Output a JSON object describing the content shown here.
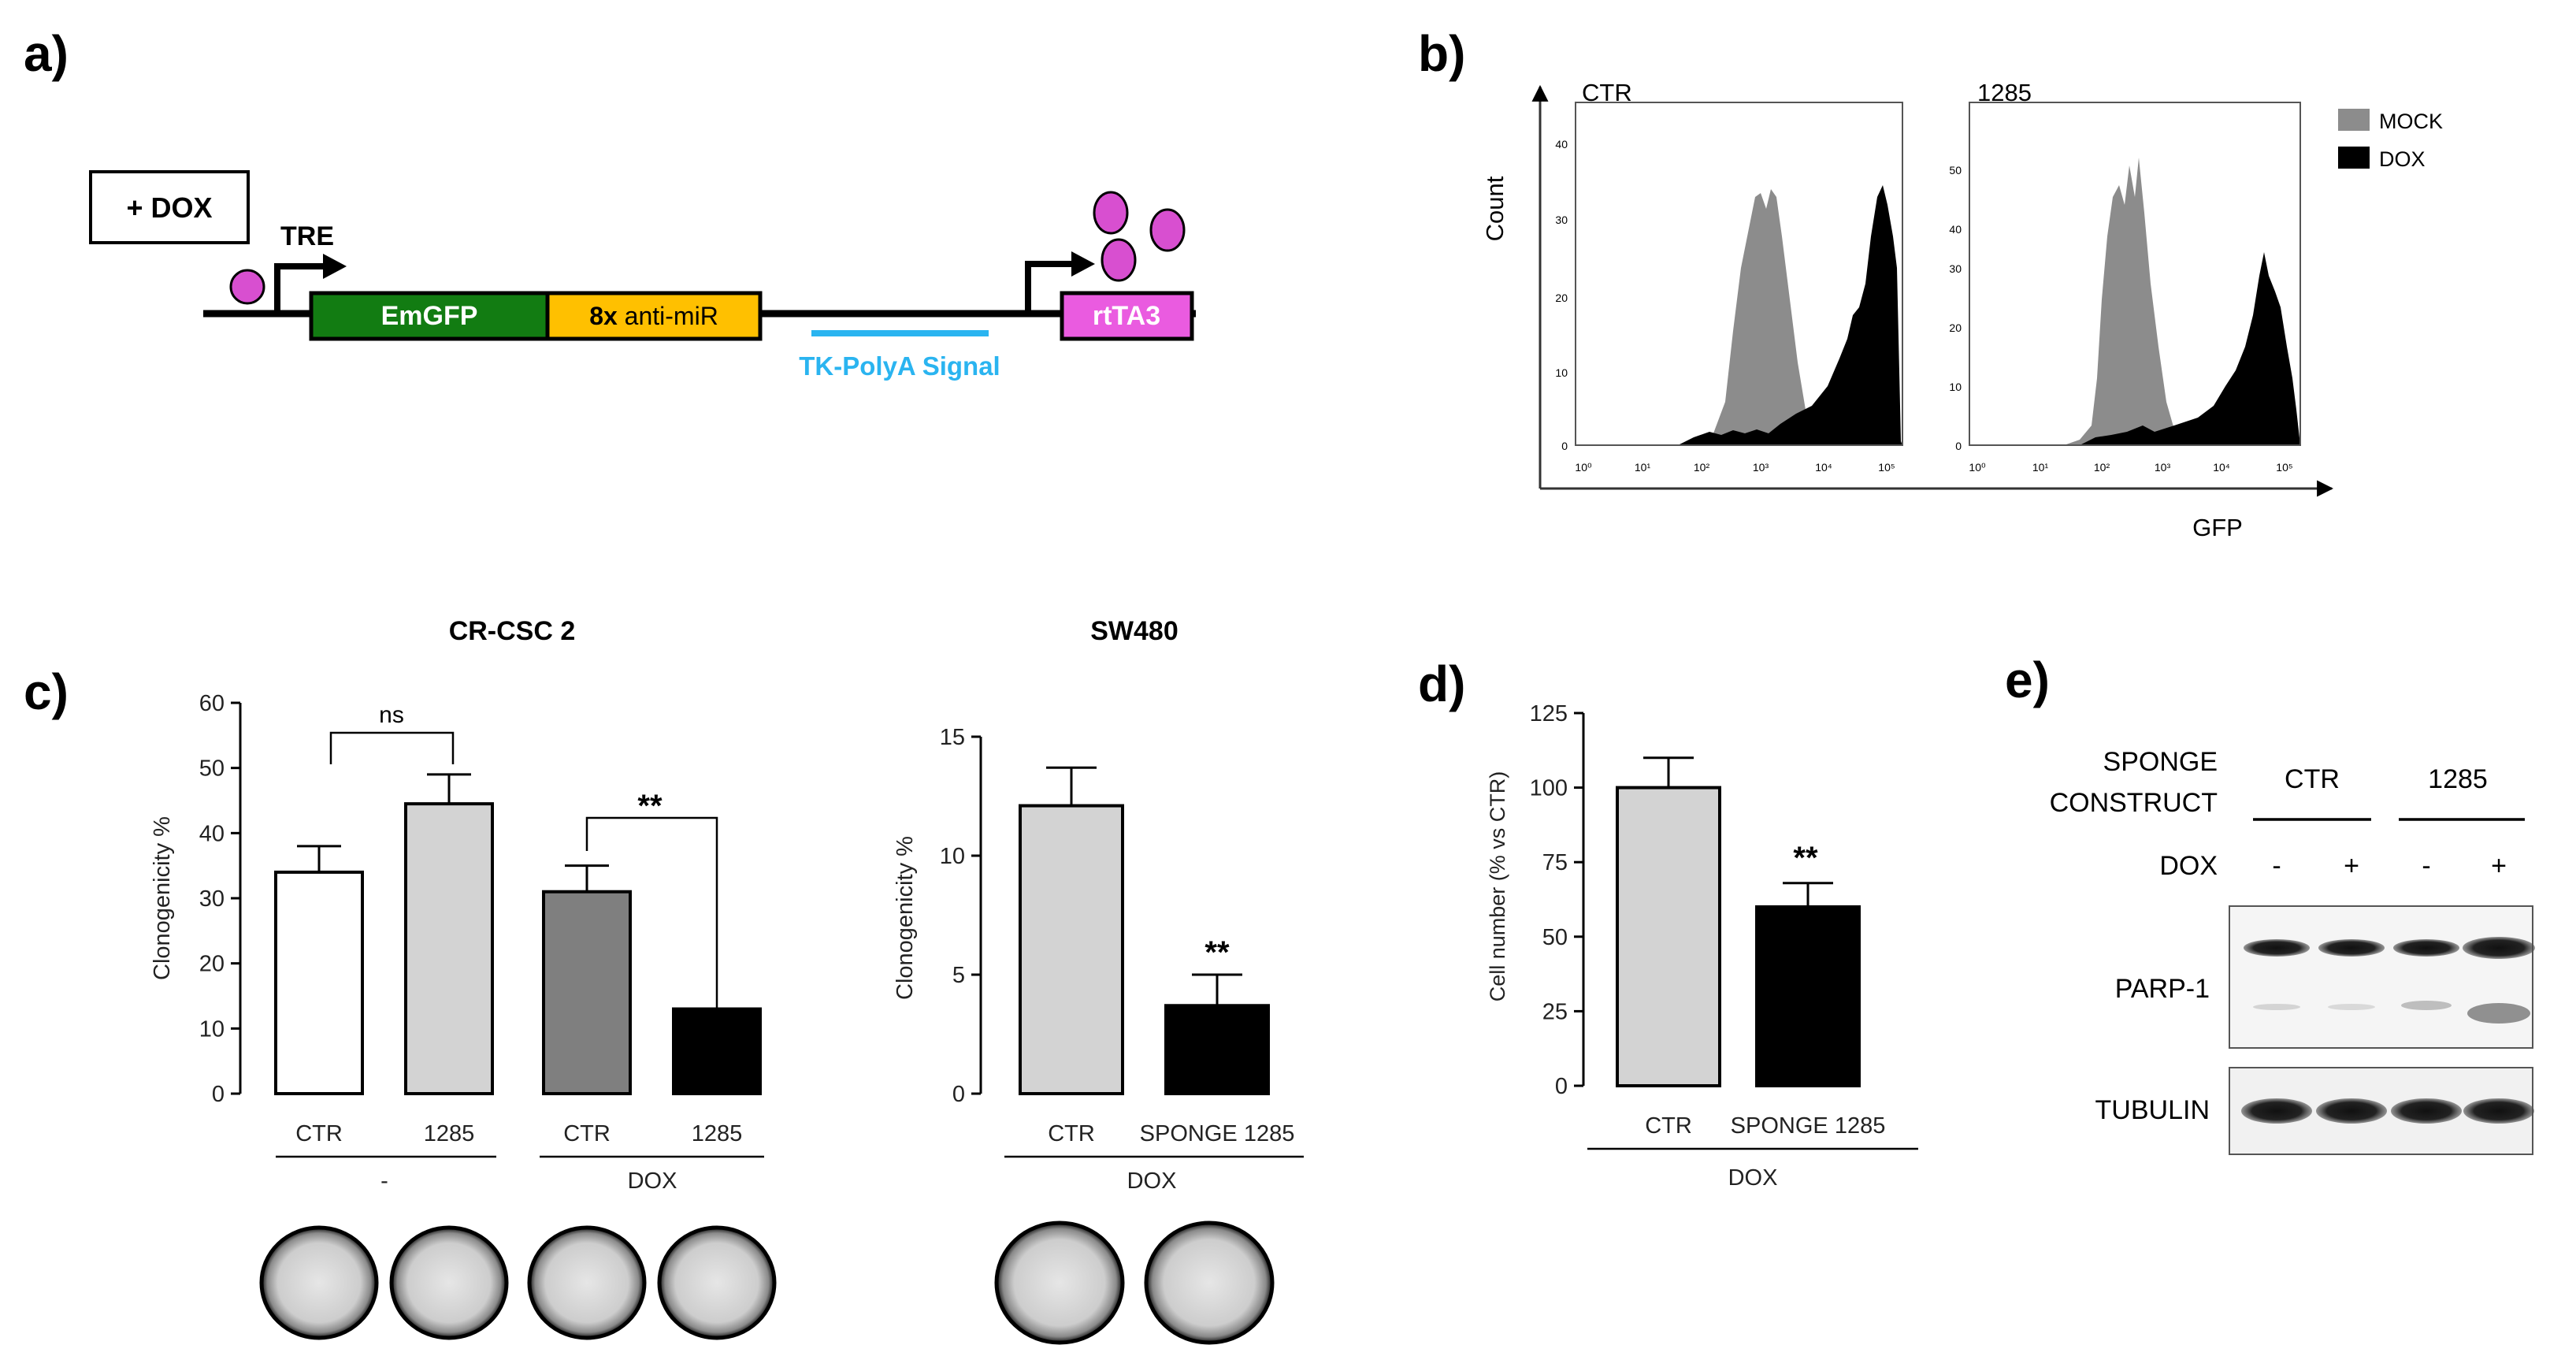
{
  "panels": {
    "a": "a)",
    "b": "b)",
    "c": "c)",
    "d": "d)",
    "e": "e)"
  },
  "construct": {
    "dox_box": "+ DOX",
    "tre": "TRE",
    "emgfp": "EmGFP",
    "antimir_prefix": "8x",
    "antimir_suffix": " anti-miR",
    "tk_polya": "TK-PolyA Signal",
    "rtta3": "rtTA3",
    "colors": {
      "emgfp": "#127c12",
      "antimir": "#ffc000",
      "rtta3": "#ea5be0",
      "dox_ball": "#d84fd0",
      "tk": "#2ab4f0"
    }
  },
  "flow": {
    "y_label": "Count",
    "x_label": "GFP",
    "legend": [
      {
        "label": "MOCK",
        "color": "#8c8c8c"
      },
      {
        "label": "DOX",
        "color": "#000000"
      }
    ],
    "plots": [
      {
        "title": "CTR",
        "y_ticks": [
          "0",
          "10",
          "20",
          "30",
          "40"
        ]
      },
      {
        "title": "1285",
        "y_ticks": [
          "0",
          "10",
          "20",
          "30",
          "40",
          "50"
        ]
      }
    ],
    "x_ticks": [
      "10⁰",
      "10¹",
      "10²",
      "10³",
      "10⁴",
      "10⁵"
    ]
  },
  "chart_data": [
    {
      "type": "bar",
      "title": "CR-CSC 2",
      "ylabel": "Clonogenicity %",
      "ylim": [
        0,
        60
      ],
      "y_ticks": [
        "0",
        "10",
        "20",
        "30",
        "40",
        "50",
        "60"
      ],
      "categories": [
        "CTR",
        "1285",
        "CTR",
        "1285"
      ],
      "values": [
        34,
        44.5,
        31,
        13
      ],
      "errors": [
        4,
        4.5,
        4,
        0
      ],
      "colors": [
        "#ffffff",
        "#d3d3d3",
        "#7f7f7f",
        "#000000"
      ],
      "groups": [
        "-",
        "DOX"
      ],
      "annotations": [
        "ns",
        "**"
      ]
    },
    {
      "type": "bar",
      "title": "SW480",
      "ylabel": "Clonogenicity %",
      "ylim": [
        0,
        15
      ],
      "y_ticks": [
        "0",
        "5",
        "10",
        "15"
      ],
      "categories": [
        "CTR",
        "SPONGE 1285"
      ],
      "values": [
        12.1,
        3.7
      ],
      "errors": [
        1.6,
        1.3
      ],
      "colors": [
        "#d3d3d3",
        "#000000"
      ],
      "groups": [
        "DOX"
      ],
      "annotations": [
        "**"
      ]
    },
    {
      "type": "bar",
      "title": "",
      "ylabel": "Cell number (% vs CTR)",
      "ylim": [
        0,
        125
      ],
      "y_ticks": [
        "0",
        "25",
        "50",
        "75",
        "100",
        "125"
      ],
      "categories": [
        "CTR",
        "SPONGE 1285"
      ],
      "values": [
        100,
        60
      ],
      "errors": [
        10,
        8
      ],
      "colors": [
        "#d3d3d3",
        "#000000"
      ],
      "groups": [
        "DOX"
      ],
      "annotations": [
        "**"
      ]
    }
  ],
  "western": {
    "construct_line1": "SPONGE",
    "construct_line2": "CONSTRUCT",
    "groups": [
      "CTR",
      "1285"
    ],
    "dox_label": "DOX",
    "dox_marks": [
      "-",
      "+",
      "-",
      "+"
    ],
    "bands": [
      "PARP-1",
      "TUBULIN"
    ]
  }
}
